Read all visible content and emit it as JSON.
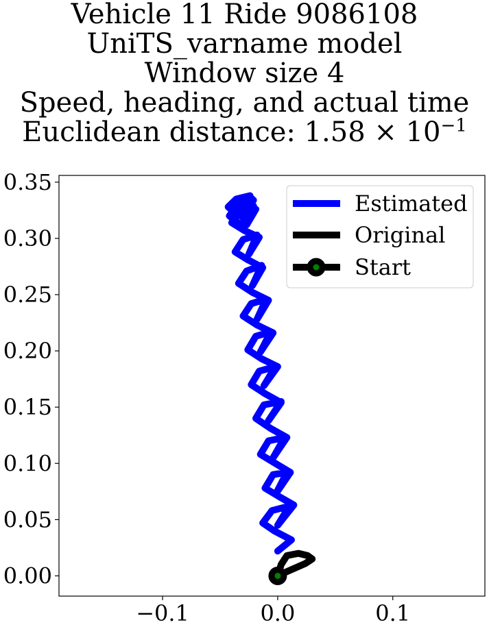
{
  "title_lines": [
    "Vehicle 11 Ride 9086108",
    "UniTS_varname model",
    "Window size 4",
    "Speed, heading, and actual time"
  ],
  "distance_line": {
    "prefix": "Euclidean distance: 1.58 × 10",
    "exponent": "−1"
  },
  "legend": {
    "estimated": "Estimated",
    "original": "Original",
    "start": "Start"
  },
  "colors": {
    "estimated": "#0000ff",
    "original": "#000000",
    "start_marker": "#008000"
  },
  "chart_data": {
    "type": "line",
    "xlim": [
      -0.19,
      0.18
    ],
    "ylim": [
      -0.018,
      0.356
    ],
    "xticks": [
      -0.1,
      0.0,
      0.1
    ],
    "xtick_labels": [
      "−0.1",
      "0.0",
      "0.1"
    ],
    "yticks": [
      0.0,
      0.05,
      0.1,
      0.15,
      0.2,
      0.25,
      0.3,
      0.35
    ],
    "ytick_labels": [
      "0.00",
      "0.05",
      "0.10",
      "0.15",
      "0.20",
      "0.25",
      "0.30",
      "0.35"
    ],
    "grid": false,
    "legend_position": "top-right",
    "series": [
      {
        "name": "Estimated",
        "x": [
          0.0,
          0.012,
          -0.003,
          -0.013,
          -0.005,
          0.01,
          0.0,
          0.014,
          0.002,
          -0.011,
          -0.004,
          0.008,
          -0.001,
          0.011,
          -0.002,
          -0.015,
          -0.008,
          0.006,
          -0.004,
          0.008,
          -0.006,
          -0.019,
          -0.012,
          0.003,
          -0.008,
          0.003,
          -0.011,
          -0.023,
          -0.016,
          -0.002,
          -0.012,
          0.0,
          -0.014,
          -0.026,
          -0.019,
          -0.006,
          -0.015,
          -0.004,
          -0.018,
          -0.03,
          -0.023,
          -0.01,
          -0.018,
          -0.008,
          -0.022,
          -0.034,
          -0.027,
          -0.014,
          -0.022,
          -0.013,
          -0.026,
          -0.037,
          -0.03,
          -0.018,
          -0.025,
          -0.016,
          -0.029,
          -0.04,
          -0.033,
          -0.021,
          -0.027,
          -0.019,
          -0.032,
          -0.042,
          -0.035,
          -0.023,
          -0.03,
          -0.021,
          -0.034,
          -0.043,
          -0.036,
          -0.024,
          -0.032,
          -0.022
        ],
        "y": [
          0.022,
          0.032,
          0.04,
          0.047,
          0.058,
          0.062,
          0.045,
          0.063,
          0.07,
          0.078,
          0.09,
          0.092,
          0.074,
          0.092,
          0.1,
          0.108,
          0.12,
          0.123,
          0.105,
          0.123,
          0.131,
          0.14,
          0.152,
          0.155,
          0.138,
          0.154,
          0.162,
          0.17,
          0.182,
          0.186,
          0.169,
          0.186,
          0.193,
          0.201,
          0.213,
          0.217,
          0.199,
          0.216,
          0.223,
          0.231,
          0.242,
          0.246,
          0.228,
          0.245,
          0.252,
          0.26,
          0.271,
          0.276,
          0.258,
          0.274,
          0.281,
          0.288,
          0.299,
          0.303,
          0.286,
          0.301,
          0.307,
          0.314,
          0.325,
          0.329,
          0.312,
          0.326,
          0.312,
          0.32,
          0.33,
          0.333,
          0.318,
          0.334,
          0.32,
          0.328,
          0.335,
          0.338,
          0.325,
          0.335
        ]
      },
      {
        "name": "Original",
        "x": [
          0.0,
          0.003,
          0.008,
          0.018,
          0.026,
          0.03,
          0.024,
          0.013,
          0.004,
          0.0
        ],
        "y": [
          0.0,
          0.01,
          0.018,
          0.02,
          0.018,
          0.015,
          0.011,
          0.006,
          0.002,
          0.0
        ]
      }
    ],
    "start_point": {
      "name": "Start",
      "x": 0.0,
      "y": 0.0
    }
  }
}
